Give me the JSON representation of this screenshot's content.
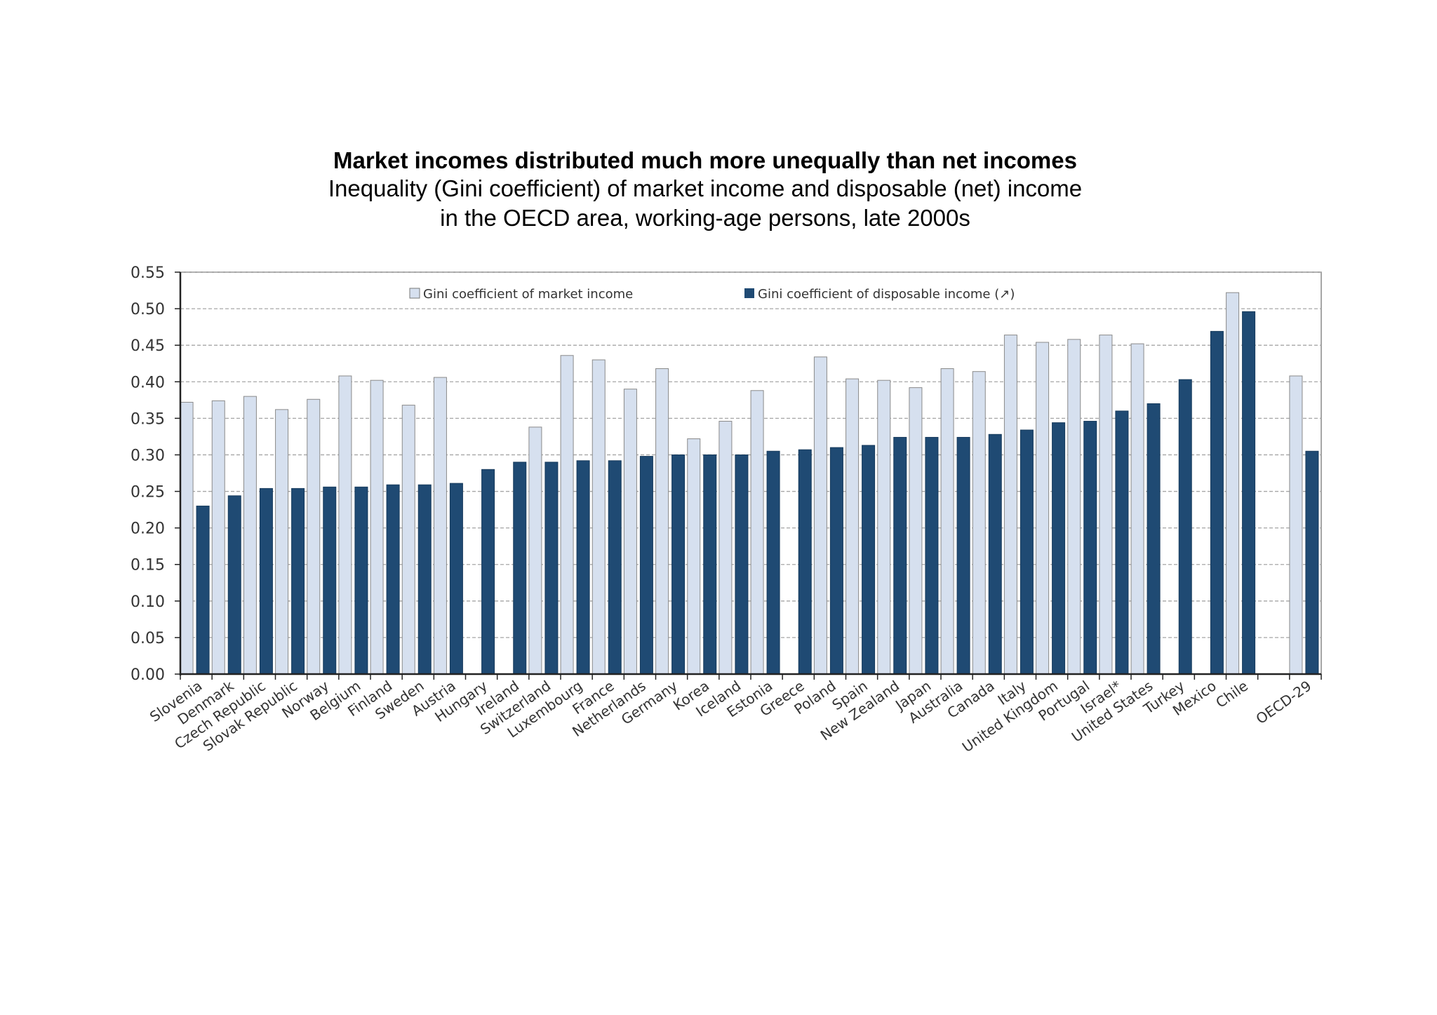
{
  "chart_data": {
    "type": "bar",
    "title": "Market incomes distributed much more unequally than net incomes",
    "subtitle_lines": [
      "Inequality (Gini coefficient) of market income and disposable (net) income",
      "in the OECD area, working-age persons, late 2000s"
    ],
    "categories": [
      "Slovenia",
      "Denmark",
      "Czech Republic",
      "Slovak Republic",
      "Norway",
      "Belgium",
      "Finland",
      "Sweden",
      "Austria",
      "Hungary",
      "Ireland",
      "Switzerland",
      "Luxembourg",
      "France",
      "Netherlands",
      "Germany",
      "Korea",
      "Iceland",
      "Estonia",
      "Greece",
      "Poland",
      "Spain",
      "New Zealand",
      "Japan",
      "Australia",
      "Canada",
      "Italy",
      "United Kingdom",
      "Portugal",
      "Israel*",
      "United States",
      "Turkey",
      "Mexico",
      "Chile",
      "",
      "OECD-29"
    ],
    "series": [
      {
        "name": "Gini coefficient of market income",
        "color": "#d6e0ef",
        "values": [
          0.372,
          0.374,
          0.38,
          0.362,
          0.376,
          0.408,
          0.402,
          0.368,
          0.406,
          null,
          null,
          0.338,
          0.436,
          0.43,
          0.39,
          0.418,
          0.322,
          0.346,
          0.388,
          null,
          0.434,
          0.404,
          0.402,
          0.392,
          0.418,
          0.414,
          0.464,
          0.454,
          0.458,
          0.464,
          0.452,
          null,
          null,
          0.522,
          null,
          0.408
        ]
      },
      {
        "name": "Gini coefficient of disposable income (↗)",
        "color": "#1f4a73",
        "values": [
          0.23,
          0.244,
          0.254,
          0.254,
          0.256,
          0.256,
          0.259,
          0.259,
          0.261,
          0.28,
          0.29,
          0.29,
          0.292,
          0.292,
          0.298,
          0.3,
          0.3,
          0.3,
          0.305,
          0.307,
          0.31,
          0.313,
          0.324,
          0.324,
          0.324,
          0.328,
          0.334,
          0.344,
          0.346,
          0.36,
          0.37,
          0.403,
          0.469,
          0.496,
          null,
          0.305
        ]
      }
    ],
    "yticks": [
      "0.00",
      "0.05",
      "0.10",
      "0.15",
      "0.20",
      "0.25",
      "0.30",
      "0.35",
      "0.40",
      "0.45",
      "0.50",
      "0.55"
    ],
    "ylim": [
      0,
      0.55
    ],
    "grid": true,
    "legend_position": "top-center"
  }
}
